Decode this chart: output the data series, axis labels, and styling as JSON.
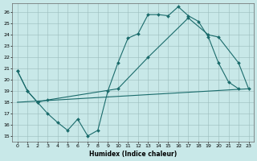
{
  "background_color": "#c8e8e8",
  "grid_color": "#9bbcbc",
  "line_color": "#1a6b6b",
  "xlabel": "Humidex (Indice chaleur)",
  "xlim_min": -0.5,
  "xlim_max": 23.5,
  "ylim_min": 14.5,
  "ylim_max": 26.8,
  "xticks": [
    0,
    1,
    2,
    3,
    4,
    5,
    6,
    7,
    8,
    9,
    10,
    11,
    12,
    13,
    14,
    15,
    16,
    17,
    18,
    19,
    20,
    21,
    22,
    23
  ],
  "yticks": [
    15,
    16,
    17,
    18,
    19,
    20,
    21,
    22,
    23,
    24,
    25,
    26
  ],
  "line1_x": [
    0,
    1,
    2,
    3,
    4,
    5,
    6,
    7,
    8,
    9,
    10,
    11,
    12,
    13,
    14,
    15,
    16,
    17,
    18,
    19,
    20,
    21,
    22,
    23
  ],
  "line1_y": [
    20.8,
    19.0,
    18.0,
    17.0,
    16.2,
    15.5,
    16.5,
    15.0,
    15.5,
    19.0,
    21.5,
    23.7,
    24.1,
    25.8,
    25.8,
    25.7,
    26.5,
    25.7,
    25.2,
    23.8,
    21.5,
    19.8,
    19.2,
    null
  ],
  "line2_x": [
    0,
    1,
    2,
    3,
    10,
    13,
    17,
    19,
    20,
    22,
    23
  ],
  "line2_y": [
    20.8,
    19.0,
    18.0,
    18.2,
    19.2,
    22.0,
    25.5,
    24.0,
    23.8,
    21.5,
    19.2
  ],
  "line3_x": [
    0,
    23
  ],
  "line3_y": [
    18.0,
    19.2
  ]
}
